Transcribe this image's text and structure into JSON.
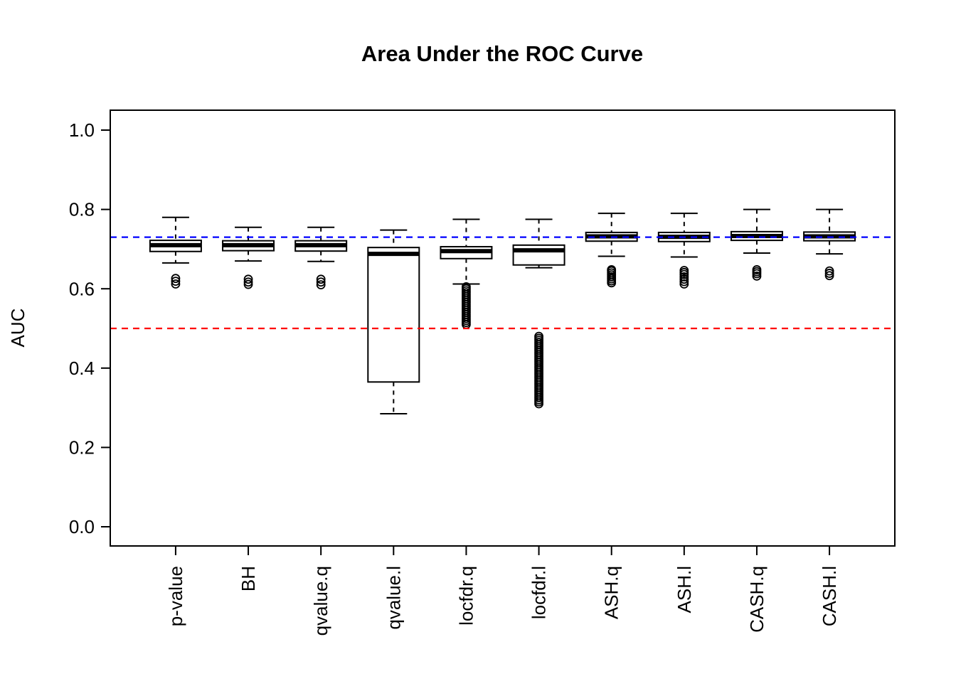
{
  "chart_data": {
    "type": "boxplot",
    "title": "Area Under the ROC Curve",
    "ylabel": "AUC",
    "xlabel": "",
    "ylim": [
      0.0,
      1.0
    ],
    "yticks": [
      "0.0",
      "0.2",
      "0.4",
      "0.6",
      "0.8",
      "1.0"
    ],
    "grid": false,
    "legend": "none",
    "colors": {
      "box_fill": "#ffffff",
      "box_stroke": "#000000",
      "reference_blue": "#0000FF",
      "reference_red": "#FF0000"
    },
    "reference_lines": [
      {
        "name": "blue-reference-line",
        "y": 0.73,
        "color": "#0000FF",
        "style": "dashed"
      },
      {
        "name": "red-reference-line",
        "y": 0.5,
        "color": "#FF0000",
        "style": "dashed"
      }
    ],
    "categories": [
      "p-value",
      "BH",
      "qvalue.q",
      "qvalue.l",
      "locfdr.q",
      "locfdr.l",
      "ASH.q",
      "ASH.l",
      "CASH.q",
      "CASH.l"
    ],
    "boxes": [
      {
        "label": "p-value",
        "whisker_low": 0.665,
        "q1": 0.694,
        "median": 0.71,
        "q3": 0.722,
        "whisker_high": 0.78,
        "outliers": [
          0.612,
          0.619,
          0.626
        ]
      },
      {
        "label": "BH",
        "whisker_low": 0.67,
        "q1": 0.696,
        "median": 0.71,
        "q3": 0.721,
        "whisker_high": 0.755,
        "outliers": [
          0.611,
          0.617,
          0.624
        ]
      },
      {
        "label": "qvalue.q",
        "whisker_low": 0.669,
        "q1": 0.695,
        "median": 0.71,
        "q3": 0.721,
        "whisker_high": 0.755,
        "outliers": [
          0.61,
          0.617,
          0.624
        ]
      },
      {
        "label": "qvalue.l",
        "whisker_low": 0.285,
        "q1": 0.365,
        "median": 0.688,
        "q3": 0.704,
        "whisker_high": 0.748,
        "outliers": []
      },
      {
        "label": "locfdr.q",
        "whisker_low": 0.612,
        "q1": 0.676,
        "median": 0.695,
        "q3": 0.706,
        "whisker_high": 0.775,
        "outliers": [
          0.51,
          0.515,
          0.52,
          0.525,
          0.53,
          0.535,
          0.54,
          0.545,
          0.55,
          0.555,
          0.56,
          0.565,
          0.57,
          0.575,
          0.58,
          0.585,
          0.59,
          0.595,
          0.6,
          0.605
        ]
      },
      {
        "label": "locfdr.l",
        "whisker_low": 0.653,
        "q1": 0.66,
        "median": 0.697,
        "q3": 0.71,
        "whisker_high": 0.775,
        "outliers": [
          0.31,
          0.315,
          0.32,
          0.325,
          0.33,
          0.335,
          0.34,
          0.345,
          0.35,
          0.355,
          0.36,
          0.365,
          0.37,
          0.375,
          0.38,
          0.385,
          0.39,
          0.395,
          0.4,
          0.405,
          0.41,
          0.415,
          0.42,
          0.425,
          0.43,
          0.435,
          0.44,
          0.445,
          0.45,
          0.455,
          0.46,
          0.465,
          0.47,
          0.475,
          0.48
        ]
      },
      {
        "label": "ASH.q",
        "whisker_low": 0.682,
        "q1": 0.72,
        "median": 0.732,
        "q3": 0.742,
        "whisker_high": 0.79,
        "outliers": [
          0.615,
          0.62,
          0.625,
          0.63,
          0.635,
          0.64,
          0.645,
          0.648
        ]
      },
      {
        "label": "ASH.l",
        "whisker_low": 0.68,
        "q1": 0.719,
        "median": 0.731,
        "q3": 0.742,
        "whisker_high": 0.79,
        "outliers": [
          0.612,
          0.618,
          0.624,
          0.63,
          0.636,
          0.641,
          0.646
        ]
      },
      {
        "label": "CASH.q",
        "whisker_low": 0.69,
        "q1": 0.722,
        "median": 0.733,
        "q3": 0.744,
        "whisker_high": 0.8,
        "outliers": [
          0.632,
          0.638,
          0.643,
          0.648
        ]
      },
      {
        "label": "CASH.l",
        "whisker_low": 0.688,
        "q1": 0.721,
        "median": 0.732,
        "q3": 0.743,
        "whisker_high": 0.8,
        "outliers": [
          0.633,
          0.639,
          0.645
        ]
      }
    ]
  }
}
